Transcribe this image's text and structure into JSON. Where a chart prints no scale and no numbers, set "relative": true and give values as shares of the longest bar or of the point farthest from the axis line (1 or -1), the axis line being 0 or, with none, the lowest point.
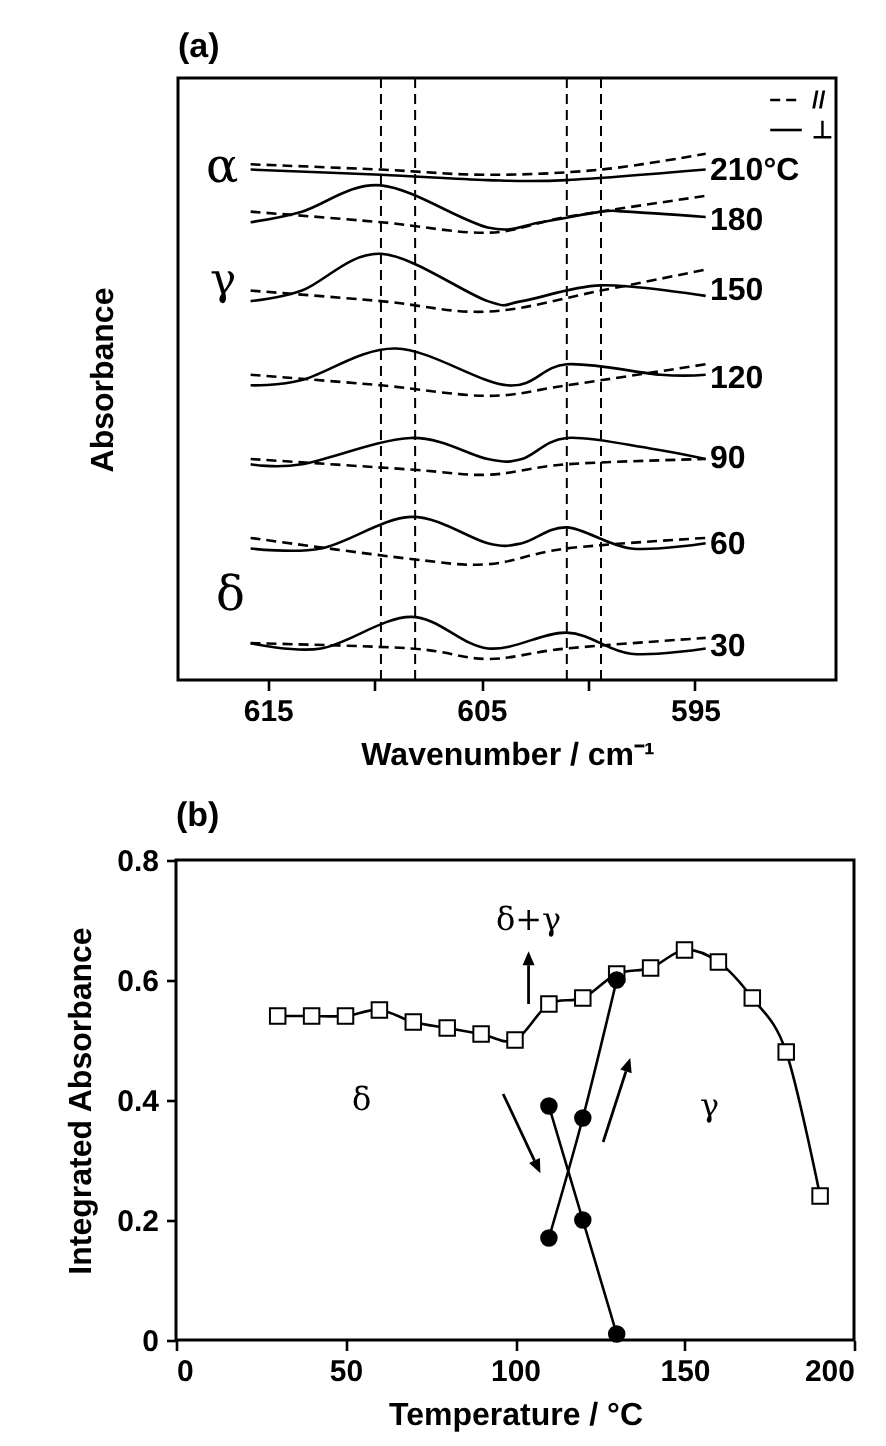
{
  "chart_data": [
    {
      "type": "line",
      "title": "(a)",
      "xlabel": "Wavenumber / cm⁻¹",
      "ylabel": "Absorbance",
      "relative": true,
      "tick_labels": "x",
      "xlim": [
        619.2,
        588.4
      ],
      "xticks": [
        615,
        {
          "value": 610,
          "label": null
        },
        605,
        {
          "value": 600,
          "label": null
        },
        595
      ],
      "legend": "top right",
      "series": [
        {
          "name": "//",
          "color": "#000000",
          "line_style": "dashed",
          "x": [
            615.8,
            609.7,
            604.7,
            599.4,
            594.5
          ],
          "values": [
            0.98,
            0.97,
            0.96,
            0.97,
            1.0
          ]
        },
        {
          "name": "⊥",
          "color": "#000000",
          "line_style": "solid",
          "x": [
            615.8,
            609.7,
            604.7,
            601.0,
            594.5
          ],
          "values": [
            0.97,
            0.96,
            0.95,
            0.95,
            0.97
          ]
        },
        {
          "color": "#000000",
          "line_style": "dashed",
          "x": [
            615.8,
            609.7,
            604.7,
            601.0,
            594.5
          ],
          "values": [
            0.89,
            0.87,
            0.85,
            0.88,
            0.92
          ]
        },
        {
          "color": "#000000",
          "line_style": "solid",
          "x": [
            615.8,
            613.4,
            609.7,
            604.7,
            602.2,
            599.4,
            598.2,
            594.5
          ],
          "values": [
            0.87,
            0.89,
            0.94,
            0.86,
            0.87,
            0.89,
            0.89,
            0.88
          ]
        },
        {
          "color": "#000000",
          "line_style": "dashed",
          "x": [
            615.8,
            609.7,
            604.7,
            599.4,
            594.5
          ],
          "values": [
            0.74,
            0.72,
            0.7,
            0.74,
            0.78
          ]
        },
        {
          "color": "#000000",
          "line_style": "solid",
          "x": [
            615.8,
            613.4,
            609.7,
            604.7,
            603.1,
            599.4,
            594.5
          ],
          "values": [
            0.72,
            0.74,
            0.81,
            0.72,
            0.72,
            0.75,
            0.73
          ]
        },
        {
          "color": "#000000",
          "line_style": "dashed",
          "x": [
            615.8,
            609.7,
            604.7,
            601.0,
            594.5
          ],
          "values": [
            0.58,
            0.56,
            0.54,
            0.56,
            0.6
          ]
        },
        {
          "color": "#000000",
          "line_style": "solid",
          "x": [
            615.8,
            613.4,
            609.0,
            603.8,
            601.0,
            596.6,
            594.5
          ],
          "values": [
            0.56,
            0.57,
            0.63,
            0.56,
            0.6,
            0.58,
            0.58
          ]
        },
        {
          "color": "#000000",
          "line_style": "dashed",
          "x": [
            615.8,
            608.3,
            604.7,
            601.0,
            594.5
          ],
          "values": [
            0.42,
            0.4,
            0.39,
            0.41,
            0.42
          ]
        },
        {
          "color": "#000000",
          "line_style": "solid",
          "x": [
            615.8,
            613.4,
            608.3,
            604.7,
            603.1,
            601.0,
            597.1,
            594.5
          ],
          "values": [
            0.41,
            0.41,
            0.46,
            0.42,
            0.42,
            0.46,
            0.44,
            0.42
          ]
        },
        {
          "color": "#000000",
          "line_style": "dashed",
          "x": [
            615.8,
            608.3,
            604.7,
            601.0,
            594.5
          ],
          "values": [
            0.27,
            0.23,
            0.22,
            0.25,
            0.27
          ]
        },
        {
          "color": "#000000",
          "line_style": "solid",
          "x": [
            615.8,
            612.5,
            608.3,
            604.7,
            603.1,
            601.0,
            598.0,
            594.5
          ],
          "values": [
            0.25,
            0.25,
            0.31,
            0.26,
            0.26,
            0.29,
            0.25,
            0.26
          ]
        },
        {
          "color": "#000000",
          "line_style": "dashed",
          "x": [
            615.8,
            608.3,
            604.7,
            601.0,
            594.5
          ],
          "values": [
            0.07,
            0.06,
            0.04,
            0.06,
            0.08
          ]
        },
        {
          "color": "#000000",
          "line_style": "solid",
          "x": [
            615.8,
            612.5,
            608.3,
            604.7,
            601.0,
            598.0,
            594.5
          ],
          "values": [
            0.07,
            0.06,
            0.12,
            0.06,
            0.09,
            0.05,
            0.06
          ]
        }
      ],
      "ref_lines": [
        {
          "axis": "x",
          "value": 609.7,
          "color": "#000000",
          "line_style": "dashed"
        },
        {
          "axis": "x",
          "value": 599.4,
          "color": "#000000",
          "line_style": "dashed"
        },
        {
          "axis": "x",
          "value": 608.1,
          "color": "#000000",
          "line_style": "dashed"
        },
        {
          "axis": "x",
          "value": 601.0,
          "color": "#000000",
          "line_style": "dashed"
        }
      ],
      "annotations": [
        "210°C",
        "180",
        "150",
        "120",
        "90",
        "60",
        "30",
        "α",
        "γ",
        "δ"
      ]
    },
    {
      "type": "line",
      "title": "(b)",
      "xlabel": "Temperature / °C",
      "ylabel": "Integrated Absorbance",
      "xlim": [
        0,
        200
      ],
      "xticks": [
        0,
        50,
        100,
        150,
        200
      ],
      "ylim": [
        0,
        0.8
      ],
      "yticks": [
        0,
        0.2,
        0.4,
        0.6,
        0.8
      ],
      "series": [
        {
          "color": "#000000",
          "marker": "square",
          "x": [
            30,
            40,
            50,
            60,
            70,
            80,
            90,
            100,
            110,
            120,
            130,
            140,
            150,
            160,
            170,
            180,
            190
          ],
          "values": [
            0.54,
            0.54,
            0.54,
            0.55,
            0.53,
            0.52,
            0.51,
            0.5,
            0.56,
            0.57,
            0.61,
            0.62,
            0.65,
            0.63,
            0.57,
            0.48,
            0.24
          ]
        },
        {
          "color": "#000000",
          "marker": "circle",
          "x": [
            110,
            120,
            130
          ],
          "values": [
            0.39,
            0.2,
            0.01
          ]
        },
        {
          "color": "#000000",
          "marker": "circle",
          "x": [
            110,
            120,
            130
          ],
          "values": [
            0.17,
            0.37,
            0.6
          ]
        }
      ],
      "annotations": [
        "δ+γ",
        "δ",
        "γ"
      ]
    }
  ]
}
